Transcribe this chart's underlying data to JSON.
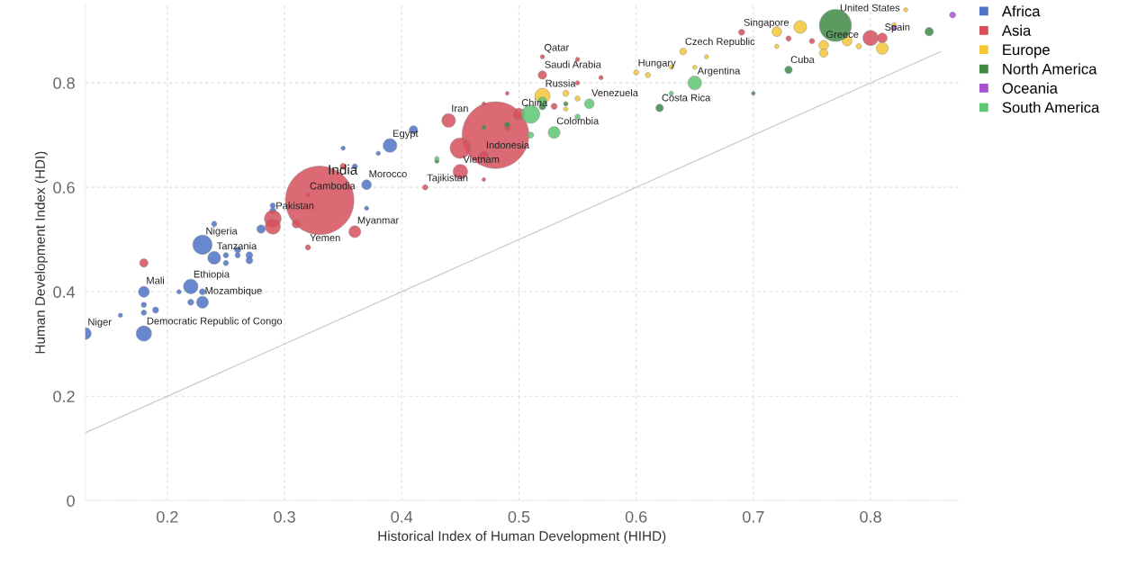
{
  "chart_data": {
    "type": "bubble",
    "xlabel": "Historical Index of Human Development (HIHD)",
    "ylabel": "Human Development Index (HDI)",
    "xlim": [
      0.13,
      0.875
    ],
    "ylim": [
      0,
      0.95
    ],
    "xticks": [
      0.2,
      0.3,
      0.4,
      0.5,
      0.6,
      0.7,
      0.8
    ],
    "yticks": [
      {
        "value": 0,
        "label": "0"
      },
      0.2,
      0.4,
      0.6,
      0.8
    ],
    "grid": true,
    "legend": "top right",
    "series": [
      {
        "name": "Africa",
        "color": "#4d72c6",
        "x": [
          0.13,
          0.18,
          0.18,
          0.18,
          0.18,
          0.19,
          0.16,
          0.21,
          0.22,
          0.22,
          0.23,
          0.23,
          0.23,
          0.24,
          0.25,
          0.25,
          0.26,
          0.26,
          0.27,
          0.27,
          0.24,
          0.28,
          0.29,
          0.29,
          0.37,
          0.39,
          0.41,
          0.35,
          0.37,
          0.38,
          0.36
        ],
        "values": [
          0.32,
          0.32,
          0.4,
          0.375,
          0.36,
          0.365,
          0.355,
          0.4,
          0.41,
          0.38,
          0.38,
          0.4,
          0.49,
          0.465,
          0.47,
          0.455,
          0.48,
          0.47,
          0.47,
          0.46,
          0.53,
          0.52,
          0.555,
          0.565,
          0.605,
          0.68,
          0.71,
          0.675,
          0.56,
          0.665,
          0.64
        ],
        "sizes": [
          0.03,
          0.05,
          0.025,
          0.006,
          0.006,
          0.008,
          0.004,
          0.004,
          0.045,
          0.008,
          0.03,
          0.008,
          0.08,
          0.035,
          0.006,
          0.006,
          0.008,
          0.006,
          0.01,
          0.01,
          0.006,
          0.015,
          0.008,
          0.006,
          0.02,
          0.04,
          0.015,
          0.004,
          0.004,
          0.004,
          0.006
        ]
      },
      {
        "name": "Asia",
        "color": "#d6505c",
        "x": [
          0.32,
          0.33,
          0.48,
          0.29,
          0.29,
          0.31,
          0.32,
          0.36,
          0.18,
          0.35,
          0.42,
          0.44,
          0.45,
          0.45,
          0.47,
          0.5,
          0.49,
          0.52,
          0.52,
          0.47,
          0.47,
          0.49,
          0.53,
          0.55,
          0.57,
          0.55,
          0.69,
          0.73,
          0.75,
          0.8,
          0.81
        ],
        "values": [
          0.585,
          0.575,
          0.7,
          0.54,
          0.525,
          0.53,
          0.485,
          0.515,
          0.455,
          0.64,
          0.6,
          0.728,
          0.675,
          0.63,
          0.66,
          0.74,
          0.715,
          0.85,
          0.815,
          0.615,
          0.76,
          0.78,
          0.755,
          0.8,
          0.81,
          0.845,
          0.897,
          0.885,
          0.88,
          0.886,
          0.886
        ],
        "sizes": [
          0.004,
          1.0,
          0.95,
          0.06,
          0.05,
          0.015,
          0.006,
          0.03,
          0.015,
          0.008,
          0.006,
          0.04,
          0.09,
          0.045,
          0.02,
          0.03,
          0.01,
          0.004,
          0.015,
          0.003,
          0.003,
          0.003,
          0.008,
          0.004,
          0.004,
          0.004,
          0.008,
          0.006,
          0.006,
          0.05,
          0.02
        ]
      },
      {
        "name": "Europe",
        "color": "#f6c636",
        "x": [
          0.52,
          0.54,
          0.55,
          0.54,
          0.6,
          0.61,
          0.64,
          0.63,
          0.66,
          0.65,
          0.72,
          0.74,
          0.72,
          0.76,
          0.76,
          0.78,
          0.81,
          0.83,
          0.82,
          0.79
        ],
        "values": [
          0.775,
          0.78,
          0.77,
          0.75,
          0.82,
          0.815,
          0.86,
          0.83,
          0.85,
          0.83,
          0.898,
          0.907,
          0.87,
          0.872,
          0.857,
          0.88,
          0.866,
          0.94,
          0.91,
          0.87
        ],
        "sizes": [
          0.05,
          0.008,
          0.006,
          0.004,
          0.006,
          0.006,
          0.01,
          0.004,
          0.004,
          0.004,
          0.02,
          0.035,
          0.004,
          0.02,
          0.015,
          0.02,
          0.03,
          0.004,
          0.006,
          0.006
        ]
      },
      {
        "name": "North America",
        "color": "#3e8a44",
        "x": [
          0.77,
          0.73,
          0.62,
          0.85,
          0.7,
          0.49,
          0.52,
          0.54,
          0.47,
          0.43
        ],
        "values": [
          0.91,
          0.825,
          0.752,
          0.898,
          0.78,
          0.72,
          0.755,
          0.76,
          0.715,
          0.65
        ],
        "sizes": [
          0.22,
          0.012,
          0.012,
          0.015,
          0.003,
          0.006,
          0.01,
          0.004,
          0.004,
          0.004
        ]
      },
      {
        "name": "Oceania",
        "color": "#a452d0",
        "x": [
          0.87,
          0.82
        ],
        "values": [
          0.93,
          0.905
        ],
        "sizes": [
          0.008,
          0.006
        ]
      },
      {
        "name": "South America",
        "color": "#5ec774",
        "x": [
          0.51,
          0.53,
          0.65,
          0.56,
          0.51,
          0.52,
          0.63,
          0.43,
          0.55
        ],
        "values": [
          0.74,
          0.705,
          0.8,
          0.76,
          0.7,
          0.765,
          0.78,
          0.655,
          0.735
        ],
        "sizes": [
          0.07,
          0.03,
          0.04,
          0.02,
          0.008,
          0.015,
          0.004,
          0.004,
          0.006
        ]
      },
      {
        "type": "line",
        "color": "#cccccc",
        "x": [
          0.13,
          0.86
        ],
        "values": [
          0.13,
          0.86
        ]
      }
    ],
    "annotations": [
      {
        "text": "Niger",
        "x": 0.13,
        "y": 0.32
      },
      {
        "text": "Democratic Republic of Congo",
        "x": 0.18,
        "y": 0.32
      },
      {
        "text": "Mali",
        "x": 0.18,
        "y": 0.4
      },
      {
        "text": "Mozambique",
        "x": 0.23,
        "y": 0.38
      },
      {
        "text": "Ethiopia",
        "x": 0.22,
        "y": 0.41
      },
      {
        "text": "Tanzania",
        "x": 0.24,
        "y": 0.465
      },
      {
        "text": "Nigeria",
        "x": 0.23,
        "y": 0.49
      },
      {
        "text": "Pakistan",
        "x": 0.29,
        "y": 0.54
      },
      {
        "text": "Cambodia",
        "x": 0.32,
        "y": 0.585
      },
      {
        "text": "India",
        "x": 0.33,
        "y": 0.575
      },
      {
        "text": "Yemen",
        "x": 0.32,
        "y": 0.485
      },
      {
        "text": "Myanmar",
        "x": 0.36,
        "y": 0.515
      },
      {
        "text": "Morocco",
        "x": 0.37,
        "y": 0.605
      },
      {
        "text": "Tajikistan",
        "x": 0.42,
        "y": 0.6
      },
      {
        "text": "Egypt",
        "x": 0.39,
        "y": 0.68
      },
      {
        "text": "Iran",
        "x": 0.44,
        "y": 0.728
      },
      {
        "text": "Indonesia",
        "x": 0.47,
        "y": 0.66
      },
      {
        "text": "Vietnam",
        "x": 0.45,
        "y": 0.63
      },
      {
        "text": "China",
        "x": 0.5,
        "y": 0.74
      },
      {
        "text": "Qatar",
        "x": 0.52,
        "y": 0.85
      },
      {
        "text": "Saudi Arabia",
        "x": 0.52,
        "y": 0.815
      },
      {
        "text": "Russia",
        "x": 0.52,
        "y": 0.775
      },
      {
        "text": "Venezuela",
        "x": 0.56,
        "y": 0.76
      },
      {
        "text": "Colombia",
        "x": 0.53,
        "y": 0.705
      },
      {
        "text": "Hungary",
        "x": 0.6,
        "y": 0.82
      },
      {
        "text": "Czech Republic",
        "x": 0.64,
        "y": 0.86
      },
      {
        "text": "Argentina",
        "x": 0.65,
        "y": 0.8
      },
      {
        "text": "Costa Rica",
        "x": 0.62,
        "y": 0.752
      },
      {
        "text": "Singapore",
        "x": 0.69,
        "y": 0.897
      },
      {
        "text": "Cuba",
        "x": 0.73,
        "y": 0.825
      },
      {
        "text": "Greece",
        "x": 0.76,
        "y": 0.872
      },
      {
        "text": "United States",
        "x": 0.77,
        "y": 0.91
      },
      {
        "text": "Spain",
        "x": 0.81,
        "y": 0.886
      }
    ]
  }
}
